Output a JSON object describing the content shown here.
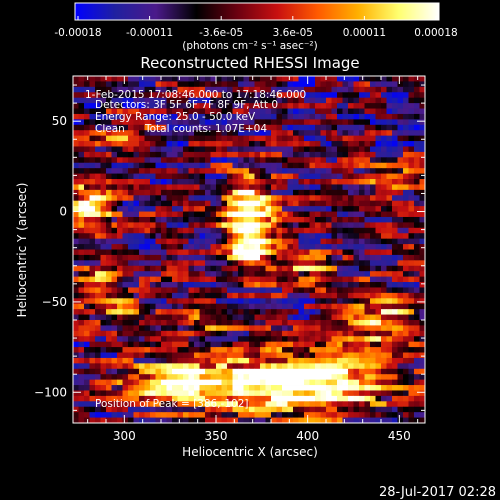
{
  "colorbar": {
    "ticks": [
      "-0.00018",
      "-0.00011",
      "-3.6e-05",
      "3.6e-05",
      "0.00011",
      "0.00018"
    ],
    "unit_label": "(photons cm⁻² s⁻¹ asec⁻²)",
    "range": [
      -0.00018,
      0.00018
    ],
    "colormap": [
      "#0000ff",
      "#2020a0",
      "#4b1a8a",
      "#000000",
      "#6a0010",
      "#c81010",
      "#ff5a00",
      "#ffb000",
      "#ffff70",
      "#ffffff"
    ]
  },
  "chart_data": {
    "type": "heatmap",
    "title": "Reconstructed RHESSI Image",
    "xlabel": "Heliocentric X (arcsec)",
    "ylabel": "Heliocentric Y (arcsec)",
    "xlim": [
      272,
      464
    ],
    "ylim": [
      -117,
      75
    ],
    "x_ticks": [
      300,
      350,
      400,
      450
    ],
    "y_ticks": [
      -100,
      -50,
      0,
      50
    ],
    "annotations": {
      "time": "1-Feb-2015 17:08:46.000 to 17:18:46.000",
      "detectors": "Detectors: 3F 5F 6F 7F 8F 9F, Att 0",
      "energy": "Energy Range: 25.0 - 50.0 keV",
      "method": "Clean",
      "counts": "Total counts: 1.07E+04",
      "peak": "Position of Peak = [386,-102]"
    },
    "grid": false,
    "sources": [
      {
        "x": 368,
        "y": 0,
        "intensity": 1.0,
        "sx": 9,
        "sy": 14
      },
      {
        "x": 370,
        "y": -20,
        "intensity": 0.75,
        "sx": 9,
        "sy": 12
      },
      {
        "x": 282,
        "y": 2,
        "intensity": 0.95,
        "sx": 8,
        "sy": 10
      },
      {
        "x": 285,
        "y": -40,
        "intensity": 0.7,
        "sx": 10,
        "sy": 8
      },
      {
        "x": 300,
        "y": -55,
        "intensity": 0.6,
        "sx": 10,
        "sy": 7
      },
      {
        "x": 370,
        "y": -95,
        "intensity": 0.9,
        "sx": 30,
        "sy": 10
      },
      {
        "x": 410,
        "y": -95,
        "intensity": 0.85,
        "sx": 25,
        "sy": 12
      },
      {
        "x": 440,
        "y": -60,
        "intensity": 0.7,
        "sx": 14,
        "sy": 12
      },
      {
        "x": 325,
        "y": -95,
        "intensity": 0.7,
        "sx": 20,
        "sy": 8
      },
      {
        "x": 300,
        "y": 40,
        "intensity": 0.55,
        "sx": 10,
        "sy": 6
      },
      {
        "x": 345,
        "y": -60,
        "intensity": 0.55,
        "sx": 12,
        "sy": 6
      },
      {
        "x": 445,
        "y": 20,
        "intensity": 0.55,
        "sx": 10,
        "sy": 6
      },
      {
        "x": 400,
        "y": -30,
        "intensity": 0.5,
        "sx": 10,
        "sy": 7
      }
    ]
  },
  "footer": {
    "date": "28-Jul-2017 02:28"
  }
}
